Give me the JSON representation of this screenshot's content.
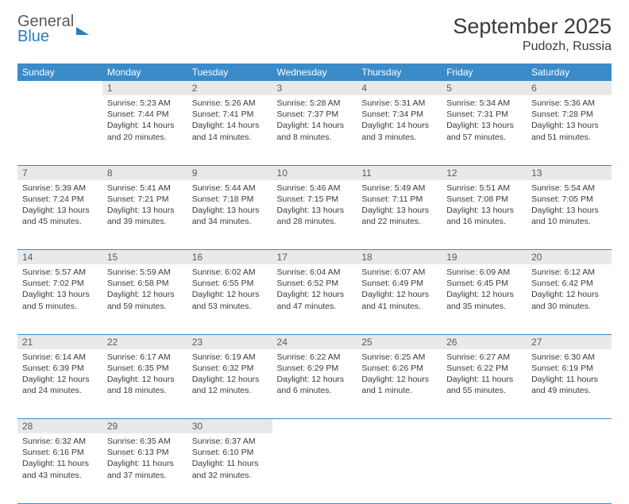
{
  "logo": {
    "line1": "General",
    "line2": "Blue"
  },
  "title": "September 2025",
  "location": "Pudozh, Russia",
  "header_color": "#3b8bc9",
  "daynum_bg": "#e9e9e9",
  "text_color": "#3a3a3a",
  "days": [
    "Sunday",
    "Monday",
    "Tuesday",
    "Wednesday",
    "Thursday",
    "Friday",
    "Saturday"
  ],
  "weeks": [
    [
      {
        "n": "",
        "sr": "",
        "ss": "",
        "dl": ""
      },
      {
        "n": "1",
        "sr": "5:23 AM",
        "ss": "7:44 PM",
        "dl": "14 hours and 20 minutes."
      },
      {
        "n": "2",
        "sr": "5:26 AM",
        "ss": "7:41 PM",
        "dl": "14 hours and 14 minutes."
      },
      {
        "n": "3",
        "sr": "5:28 AM",
        "ss": "7:37 PM",
        "dl": "14 hours and 8 minutes."
      },
      {
        "n": "4",
        "sr": "5:31 AM",
        "ss": "7:34 PM",
        "dl": "14 hours and 3 minutes."
      },
      {
        "n": "5",
        "sr": "5:34 AM",
        "ss": "7:31 PM",
        "dl": "13 hours and 57 minutes."
      },
      {
        "n": "6",
        "sr": "5:36 AM",
        "ss": "7:28 PM",
        "dl": "13 hours and 51 minutes."
      }
    ],
    [
      {
        "n": "7",
        "sr": "5:39 AM",
        "ss": "7:24 PM",
        "dl": "13 hours and 45 minutes."
      },
      {
        "n": "8",
        "sr": "5:41 AM",
        "ss": "7:21 PM",
        "dl": "13 hours and 39 minutes."
      },
      {
        "n": "9",
        "sr": "5:44 AM",
        "ss": "7:18 PM",
        "dl": "13 hours and 34 minutes."
      },
      {
        "n": "10",
        "sr": "5:46 AM",
        "ss": "7:15 PM",
        "dl": "13 hours and 28 minutes."
      },
      {
        "n": "11",
        "sr": "5:49 AM",
        "ss": "7:11 PM",
        "dl": "13 hours and 22 minutes."
      },
      {
        "n": "12",
        "sr": "5:51 AM",
        "ss": "7:08 PM",
        "dl": "13 hours and 16 minutes."
      },
      {
        "n": "13",
        "sr": "5:54 AM",
        "ss": "7:05 PM",
        "dl": "13 hours and 10 minutes."
      }
    ],
    [
      {
        "n": "14",
        "sr": "5:57 AM",
        "ss": "7:02 PM",
        "dl": "13 hours and 5 minutes."
      },
      {
        "n": "15",
        "sr": "5:59 AM",
        "ss": "6:58 PM",
        "dl": "12 hours and 59 minutes."
      },
      {
        "n": "16",
        "sr": "6:02 AM",
        "ss": "6:55 PM",
        "dl": "12 hours and 53 minutes."
      },
      {
        "n": "17",
        "sr": "6:04 AM",
        "ss": "6:52 PM",
        "dl": "12 hours and 47 minutes."
      },
      {
        "n": "18",
        "sr": "6:07 AM",
        "ss": "6:49 PM",
        "dl": "12 hours and 41 minutes."
      },
      {
        "n": "19",
        "sr": "6:09 AM",
        "ss": "6:45 PM",
        "dl": "12 hours and 35 minutes."
      },
      {
        "n": "20",
        "sr": "6:12 AM",
        "ss": "6:42 PM",
        "dl": "12 hours and 30 minutes."
      }
    ],
    [
      {
        "n": "21",
        "sr": "6:14 AM",
        "ss": "6:39 PM",
        "dl": "12 hours and 24 minutes."
      },
      {
        "n": "22",
        "sr": "6:17 AM",
        "ss": "6:35 PM",
        "dl": "12 hours and 18 minutes."
      },
      {
        "n": "23",
        "sr": "6:19 AM",
        "ss": "6:32 PM",
        "dl": "12 hours and 12 minutes."
      },
      {
        "n": "24",
        "sr": "6:22 AM",
        "ss": "6:29 PM",
        "dl": "12 hours and 6 minutes."
      },
      {
        "n": "25",
        "sr": "6:25 AM",
        "ss": "6:26 PM",
        "dl": "12 hours and 1 minute."
      },
      {
        "n": "26",
        "sr": "6:27 AM",
        "ss": "6:22 PM",
        "dl": "11 hours and 55 minutes."
      },
      {
        "n": "27",
        "sr": "6:30 AM",
        "ss": "6:19 PM",
        "dl": "11 hours and 49 minutes."
      }
    ],
    [
      {
        "n": "28",
        "sr": "6:32 AM",
        "ss": "6:16 PM",
        "dl": "11 hours and 43 minutes."
      },
      {
        "n": "29",
        "sr": "6:35 AM",
        "ss": "6:13 PM",
        "dl": "11 hours and 37 minutes."
      },
      {
        "n": "30",
        "sr": "6:37 AM",
        "ss": "6:10 PM",
        "dl": "11 hours and 32 minutes."
      },
      {
        "n": "",
        "sr": "",
        "ss": "",
        "dl": ""
      },
      {
        "n": "",
        "sr": "",
        "ss": "",
        "dl": ""
      },
      {
        "n": "",
        "sr": "",
        "ss": "",
        "dl": ""
      },
      {
        "n": "",
        "sr": "",
        "ss": "",
        "dl": ""
      }
    ]
  ],
  "labels": {
    "sunrise": "Sunrise:",
    "sunset": "Sunset:",
    "daylight": "Daylight:"
  }
}
